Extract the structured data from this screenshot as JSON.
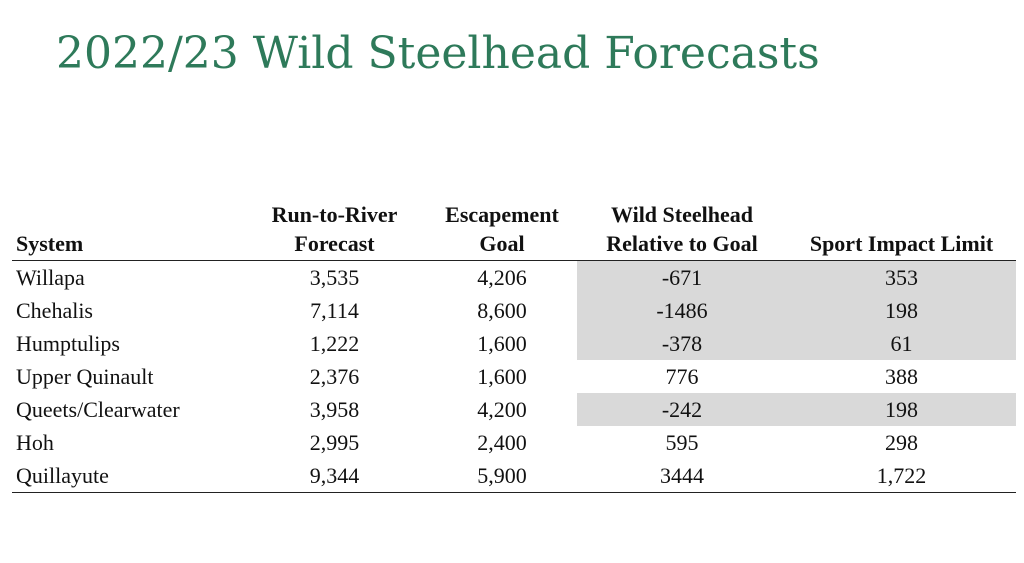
{
  "title": "2022/23 Wild Steelhead Forecasts",
  "table": {
    "headers": {
      "system": "System",
      "run_line1": "Run-to-River",
      "run_line2": "Forecast",
      "esc_line1": "Escapement",
      "esc_line2": "Goal",
      "rel_line1": "Wild Steelhead",
      "rel_line2": "Relative to Goal",
      "sport": "Sport Impact Limit"
    },
    "rows": [
      {
        "system": "Willapa",
        "forecast": "3,535",
        "goal": "4,206",
        "relative": "-671",
        "limit": "353",
        "shaded": true
      },
      {
        "system": "Chehalis",
        "forecast": "7,114",
        "goal": "8,600",
        "relative": "-1486",
        "limit": "198",
        "shaded": true
      },
      {
        "system": "Humptulips",
        "forecast": "1,222",
        "goal": "1,600",
        "relative": "-378",
        "limit": "61",
        "shaded": true
      },
      {
        "system": "Upper Quinault",
        "forecast": "2,376",
        "goal": "1,600",
        "relative": "776",
        "limit": "388",
        "shaded": false
      },
      {
        "system": "Queets/Clearwater",
        "forecast": "3,958",
        "goal": "4,200",
        "relative": "-242",
        "limit": "198",
        "shaded": true
      },
      {
        "system": "Hoh",
        "forecast": "2,995",
        "goal": "2,400",
        "relative": "595",
        "limit": "298",
        "shaded": false
      },
      {
        "system": "Quillayute",
        "forecast": "9,344",
        "goal": "5,900",
        "relative": "3444",
        "limit": "1,722",
        "shaded": false
      }
    ]
  },
  "colors": {
    "title": "#2e7a5a",
    "shade": "#d9d9d9"
  }
}
